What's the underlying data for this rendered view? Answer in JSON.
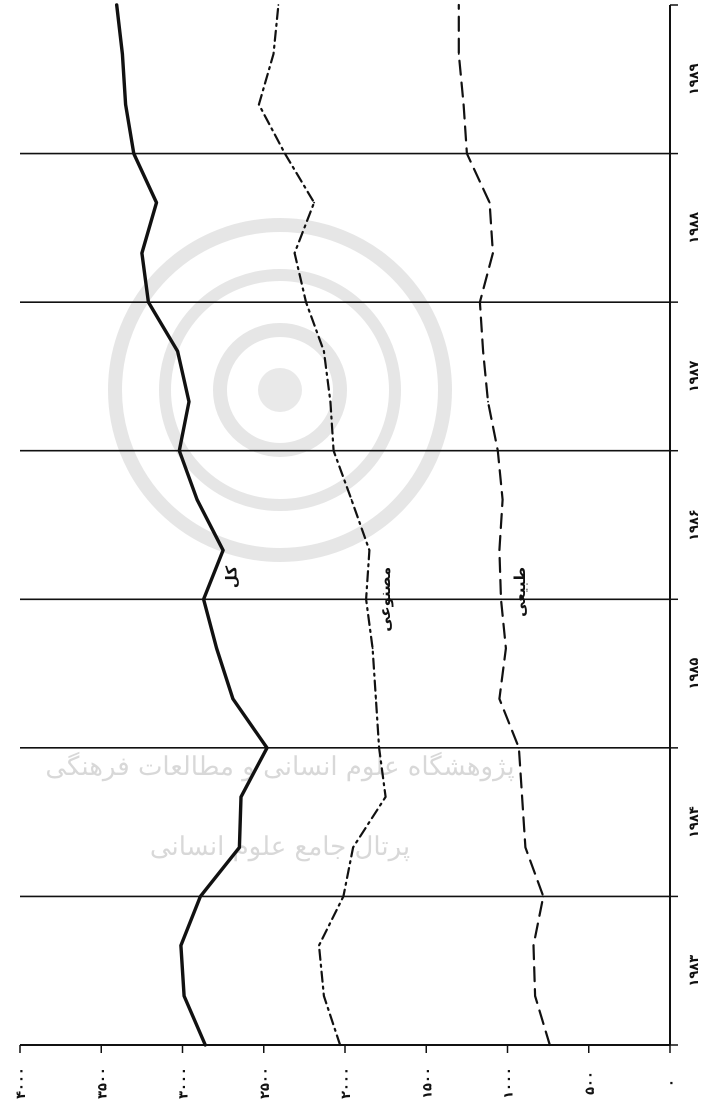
{
  "chart_data": {
    "type": "line",
    "x_categories": [
      "۱۹۸۳",
      "۱۹۸۴",
      "۱۹۸۵",
      "۱۹۸۶",
      "۱۹۸۷",
      "۱۹۸۸",
      "۱۹۸۹"
    ],
    "y_tick_labels": [
      "۰",
      "۵۰۰",
      "۱۰۰۰",
      "۱۵۰۰",
      "۲۰۰۰",
      "۲۵۰۰",
      "۳۰۰۰",
      "۳۵۰۰",
      "۴۰۰۰"
    ],
    "ylim": [
      0,
      4000
    ],
    "grid": "vertical lines at year boundaries",
    "x_values": [
      0,
      0.33,
      0.67,
      1,
      1.33,
      1.67,
      2,
      2.33,
      2.67,
      3,
      3.33,
      3.67,
      4,
      4.33,
      4.67,
      5,
      5.33,
      5.67,
      6,
      6.33,
      6.67,
      7
    ],
    "series": [
      {
        "name": "کل",
        "style": "solid",
        "values": [
          2860,
          2990,
          3010,
          2890,
          2650,
          2640,
          2480,
          2690,
          2790,
          2870,
          2750,
          2910,
          3020,
          2960,
          3030,
          3210,
          3250,
          3160,
          3300,
          3350,
          3370,
          3405
        ]
      },
      {
        "name": "مصنوعی",
        "style": "dash-dot",
        "values": [
          2030,
          2130,
          2160,
          2010,
          1950,
          1750,
          1790,
          1810,
          1830,
          1870,
          1850,
          1960,
          2070,
          2090,
          2130,
          2240,
          2310,
          2190,
          2370,
          2530,
          2440,
          2410
        ]
      },
      {
        "name": "طبیعی",
        "style": "dashed",
        "values": [
          740,
          830,
          840,
          780,
          890,
          910,
          930,
          1050,
          1010,
          1040,
          1050,
          1030,
          1060,
          1120,
          1150,
          1170,
          1090,
          1110,
          1250,
          1270,
          1300,
          1300
        ]
      }
    ],
    "series_labels": [
      "کل",
      "مصنوعی",
      "طبیعی"
    ],
    "colors": {
      "ink": "#111111",
      "watermark": "#d8d8d8",
      "background": "#ffffff"
    }
  },
  "watermark": {
    "line1": "پژوهشگاه علوم انسانی و مطالعات فرهنگی",
    "line2": "پرتال جامع علوم انسانی"
  }
}
